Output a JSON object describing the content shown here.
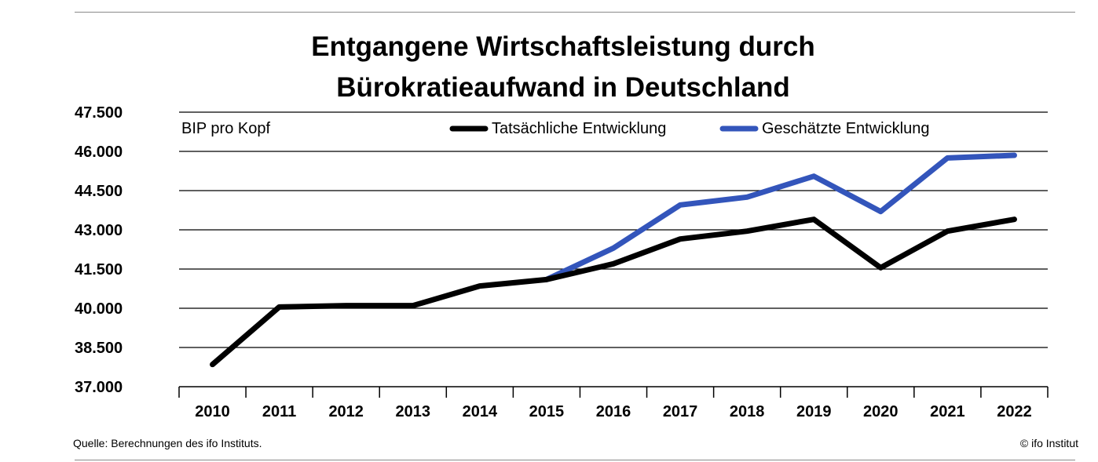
{
  "chart_data": {
    "type": "line",
    "title_line1": "Entgangene Wirtschaftsleistung durch",
    "title_line2": "Bürokratieaufwand in Deutschland",
    "ylabel": "BIP pro Kopf",
    "ylim": [
      37000,
      47500
    ],
    "y_ticks": [
      47500,
      46000,
      44500,
      43000,
      41500,
      40000,
      38500,
      37000
    ],
    "y_tick_labels": [
      "47.500",
      "46.000",
      "44.500",
      "43.000",
      "41.500",
      "40.000",
      "38.500",
      "37.000"
    ],
    "categories": [
      "2010",
      "2011",
      "2012",
      "2013",
      "2014",
      "2015",
      "2016",
      "2017",
      "2018",
      "2019",
      "2020",
      "2021",
      "2022"
    ],
    "grid": true,
    "legend_position": "top",
    "series": [
      {
        "name": "Tatsächliche Entwicklung",
        "color": "#000000",
        "values": [
          37850,
          40050,
          40100,
          40100,
          40850,
          41100,
          41700,
          42650,
          42950,
          43400,
          41550,
          42950,
          43400
        ]
      },
      {
        "name": "Geschätzte Entwicklung",
        "color": "#3355bb",
        "values": [
          null,
          null,
          null,
          null,
          null,
          41100,
          42300,
          43950,
          44250,
          45050,
          43700,
          45750,
          45850
        ]
      }
    ]
  },
  "footer": {
    "source": "Quelle: Berechnungen des ifo Instituts.",
    "copyright": "© ifo Institut"
  }
}
